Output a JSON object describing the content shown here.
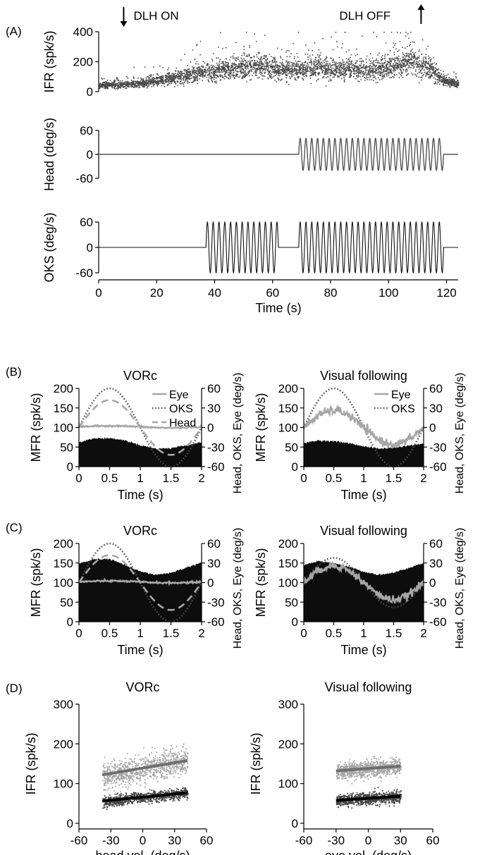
{
  "chart_data": [
    {
      "panel": "(A)",
      "type": "scatter",
      "annotations": {
        "on": "DLH ON",
        "off": "DLH OFF"
      },
      "events": {
        "on_time": 13,
        "off_time": 110
      },
      "shared_x": {
        "xlabel": "Time (s)",
        "xlim": [
          0,
          124
        ],
        "xticks": [
          0,
          20,
          40,
          60,
          80,
          100,
          120
        ]
      },
      "rows": [
        {
          "ylabel": "IFR (spk/s)",
          "ylim": [
            0,
            400
          ],
          "yticks": [
            0,
            200,
            400
          ],
          "baseline_series": [
            {
              "x": 0,
              "y": 45
            },
            {
              "x": 10,
              "y": 50
            },
            {
              "x": 13,
              "y": 55
            },
            {
              "x": 20,
              "y": 75
            },
            {
              "x": 30,
              "y": 110
            },
            {
              "x": 38,
              "y": 135
            },
            {
              "x": 45,
              "y": 150
            },
            {
              "x": 52,
              "y": 170
            },
            {
              "x": 57,
              "y": 165
            },
            {
              "x": 62,
              "y": 150
            },
            {
              "x": 69,
              "y": 145
            },
            {
              "x": 75,
              "y": 160
            },
            {
              "x": 85,
              "y": 150
            },
            {
              "x": 95,
              "y": 150
            },
            {
              "x": 103,
              "y": 170
            },
            {
              "x": 108,
              "y": 210
            },
            {
              "x": 112,
              "y": 180
            },
            {
              "x": 116,
              "y": 120
            },
            {
              "x": 119,
              "y": 75
            },
            {
              "x": 124,
              "y": 50
            }
          ]
        },
        {
          "ylabel": "Head (deg/s)",
          "ylim": [
            -60,
            60
          ],
          "yticks": [
            -60,
            0,
            60
          ],
          "sine": {
            "start": 69,
            "end": 119,
            "amplitude": 40,
            "freq_hz": 0.5
          }
        },
        {
          "ylabel": "OKS (deg/s)",
          "ylim": [
            -60,
            60
          ],
          "yticks": [
            -60,
            0,
            60
          ],
          "sine_segments": [
            {
              "start": 37,
              "end": 62,
              "amplitude": 60,
              "freq_hz": 0.5
            },
            {
              "start": 69,
              "end": 119,
              "amplitude": 60,
              "freq_hz": 0.5
            }
          ]
        }
      ]
    },
    {
      "panel": "(B)",
      "type": "area",
      "title": "VORc",
      "xlabel": "Time (s)",
      "ylabel": "MFR (spk/s)",
      "y2label": "Head, OKS, Eye (deg/s)",
      "xlim": [
        0,
        2
      ],
      "ylim": [
        0,
        200
      ],
      "y2lim": [
        -60,
        60
      ],
      "xticks": [
        0,
        0.5,
        1,
        1.5,
        2
      ],
      "yticks": [
        0,
        50,
        100,
        150,
        200
      ],
      "y2ticks": [
        -60,
        -30,
        0,
        30,
        60
      ],
      "legend": [
        {
          "name": "Eye",
          "style": "solid"
        },
        {
          "name": "OKS",
          "style": "dotted"
        },
        {
          "name": "Head",
          "style": "dashed"
        }
      ],
      "mfr": {
        "x": [
          0,
          0.25,
          0.5,
          0.75,
          1,
          1.25,
          1.5,
          1.75,
          2
        ],
        "y": [
          63,
          72,
          73,
          67,
          55,
          46,
          47,
          55,
          62
        ]
      },
      "eye": {
        "offset": 1,
        "amplitude": 1.5,
        "phase_s": 0.5,
        "noise": 0.6
      },
      "oks": {
        "amplitude": 60,
        "phase_s": 0.5
      },
      "head": {
        "amplitude": 42,
        "phase_s": 0.5
      }
    },
    {
      "panel": "",
      "type": "area",
      "title": "Visual following",
      "xlabel": "Time (s)",
      "ylabel": "MFR (spk/s)",
      "y2label": "Head, OKS, Eye (deg/s)",
      "xlim": [
        0,
        2
      ],
      "ylim": [
        0,
        200
      ],
      "y2lim": [
        -60,
        60
      ],
      "xticks": [
        0,
        0.5,
        1,
        1.5,
        2
      ],
      "yticks": [
        0,
        50,
        100,
        150,
        200
      ],
      "y2ticks": [
        -60,
        -30,
        0,
        30,
        60
      ],
      "legend": [
        {
          "name": "Eye",
          "style": "solid"
        },
        {
          "name": "OKS",
          "style": "dotted"
        }
      ],
      "mfr": {
        "x": [
          0,
          0.25,
          0.5,
          0.75,
          1,
          1.25,
          1.5,
          1.75,
          2
        ],
        "y": [
          60,
          67,
          65,
          60,
          52,
          46,
          48,
          54,
          58
        ]
      },
      "eye": {
        "offset": 0,
        "amplitude": 26,
        "phase_s": 0.5,
        "noise": 3
      },
      "oks": {
        "amplitude": 60,
        "phase_s": 0.5
      }
    },
    {
      "panel": "(C)",
      "type": "area",
      "title": "VORc",
      "xlabel": "Time (s)",
      "ylabel": "MFR (spk/s)",
      "y2label": "Head, OKS, Eye (deg/s)",
      "xlim": [
        0,
        2
      ],
      "ylim": [
        0,
        200
      ],
      "y2lim": [
        -60,
        60
      ],
      "xticks": [
        0,
        0.5,
        1,
        1.5,
        2
      ],
      "yticks": [
        0,
        50,
        100,
        150,
        200
      ],
      "y2ticks": [
        -60,
        -30,
        0,
        30,
        60
      ],
      "mfr": {
        "x": [
          0,
          0.25,
          0.5,
          0.75,
          1,
          1.25,
          1.5,
          1.75,
          2
        ],
        "y": [
          148,
          160,
          160,
          145,
          128,
          120,
          125,
          138,
          152
        ]
      },
      "eye": {
        "offset": 1,
        "amplitude": 1.5,
        "phase_s": 0.5,
        "noise": 0.6
      },
      "oks": {
        "amplitude": 60,
        "phase_s": 0.5
      },
      "head": {
        "amplitude": 42,
        "phase_s": 0.5
      }
    },
    {
      "panel": "",
      "type": "area",
      "title": "Visual following",
      "xlabel": "Time (s)",
      "ylabel": "MFR (spk/s)",
      "y2label": "Head, OKS, Eye (deg/s)",
      "xlim": [
        0,
        2
      ],
      "ylim": [
        0,
        200
      ],
      "y2lim": [
        -60,
        60
      ],
      "xticks": [
        0,
        0.5,
        1,
        1.5,
        2
      ],
      "yticks": [
        0,
        50,
        100,
        150,
        200
      ],
      "y2ticks": [
        -60,
        -30,
        0,
        30,
        60
      ],
      "mfr": {
        "x": [
          0,
          0.25,
          0.5,
          0.75,
          1,
          1.25,
          1.5,
          1.75,
          2
        ],
        "y": [
          145,
          155,
          150,
          140,
          128,
          120,
          125,
          138,
          150
        ]
      },
      "eye": {
        "offset": 0,
        "amplitude": 26,
        "phase_s": 0.5,
        "noise": 3
      },
      "oks": {
        "amplitude": 38,
        "phase_s": 0.5
      }
    },
    {
      "panel": "(D)",
      "type": "scatter",
      "title": "VORc",
      "xlabel": "head vel. (deg/s)",
      "ylabel": "IFR (spk/s)",
      "xlim": [
        -60,
        60
      ],
      "ylim": [
        0,
        300
      ],
      "xticks": [
        -60,
        -30,
        0,
        30,
        60
      ],
      "yticks": [
        0,
        100,
        200,
        300
      ],
      "xrange": [
        -38,
        42
      ],
      "clouds": [
        {
          "color": "#a6a6a6",
          "fit": {
            "intercept": 139,
            "slope": 0.45
          },
          "spread": 30
        },
        {
          "color": "#444444",
          "fit": {
            "intercept": 66,
            "slope": 0.26
          },
          "spread": 12
        }
      ]
    },
    {
      "panel": "",
      "type": "scatter",
      "title": "Visual following",
      "xlabel": "eye vel. (deg/s)",
      "ylabel": "IFR (spk/s)",
      "xlim": [
        -60,
        60
      ],
      "ylim": [
        0,
        300
      ],
      "xticks": [
        -60,
        -30,
        0,
        30,
        60
      ],
      "yticks": [
        0,
        100,
        200,
        300
      ],
      "xrange": [
        -30,
        30
      ],
      "clouds": [
        {
          "color": "#a6a6a6",
          "fit": {
            "intercept": 138,
            "slope": 0.2
          },
          "spread": 18
        },
        {
          "color": "#444444",
          "fit": {
            "intercept": 63,
            "slope": 0.18
          },
          "spread": 13
        }
      ]
    }
  ]
}
